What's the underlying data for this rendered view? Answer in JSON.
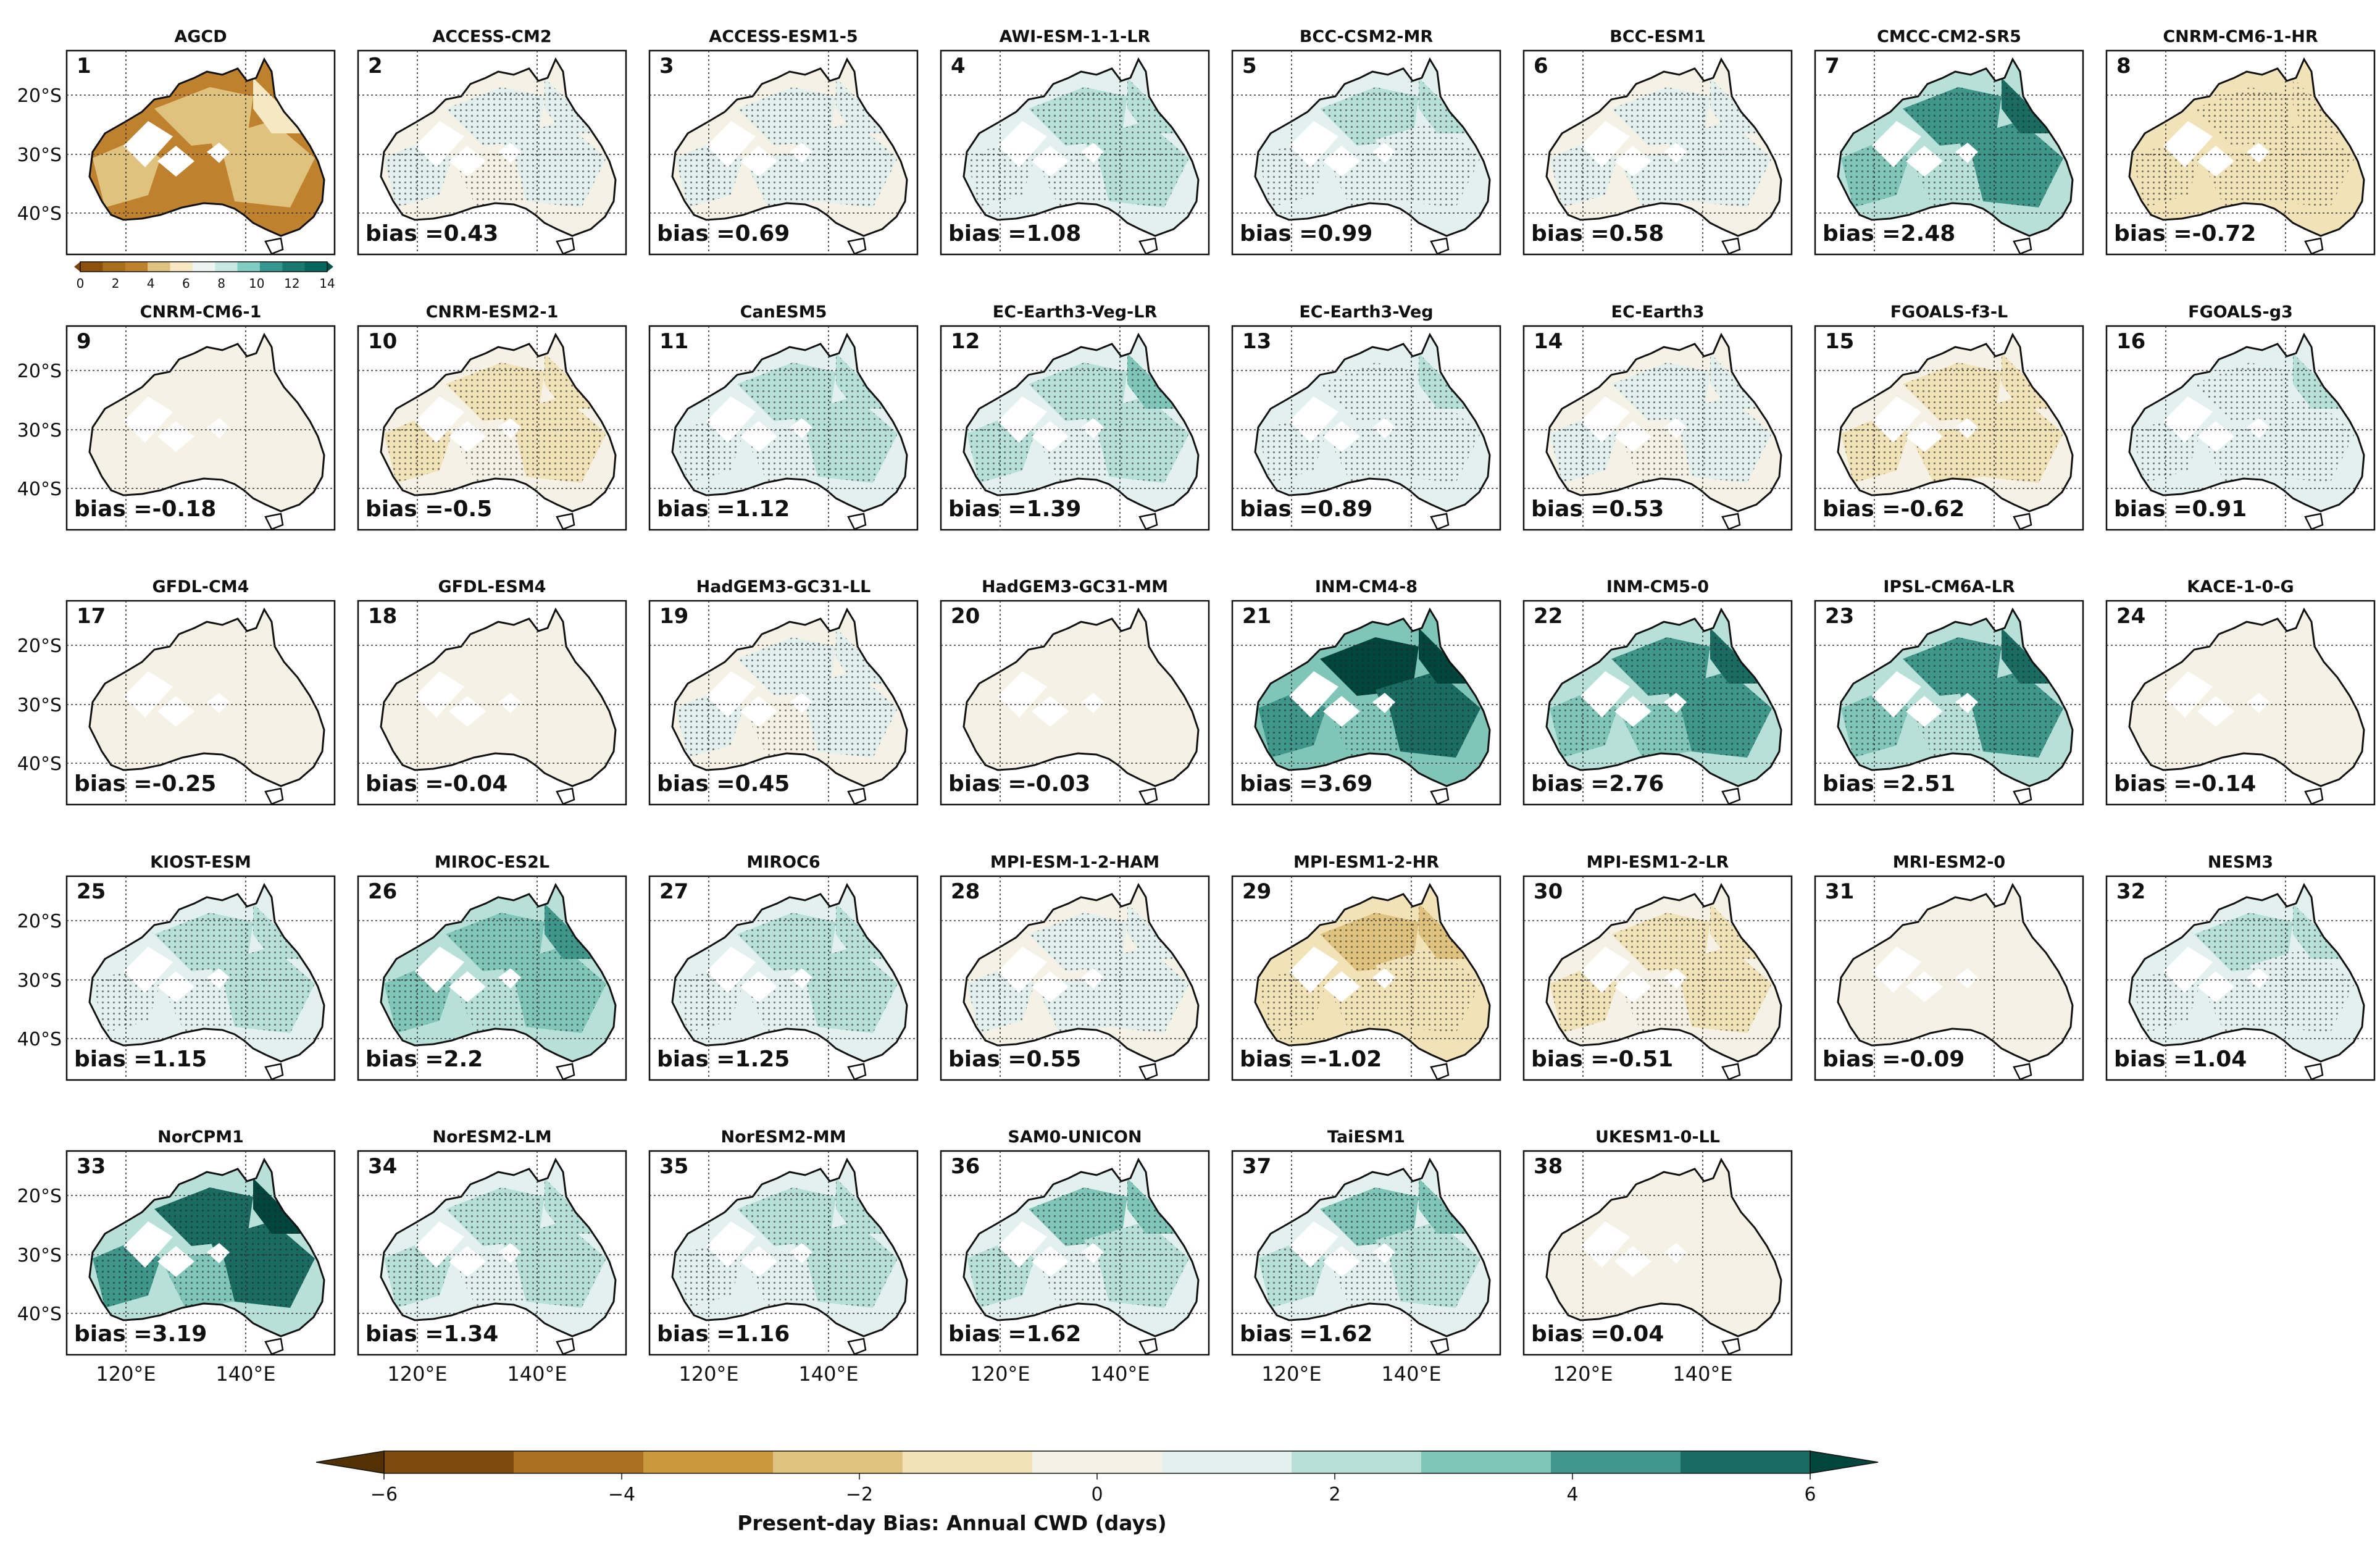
{
  "chart_data": {
    "type": "heatmap",
    "description_kind": "small-multiples maps",
    "reference": {
      "index": "1",
      "title": "AGCD"
    },
    "observed_colorbar": {
      "ticks": [
        "0",
        "2",
        "4",
        "6",
        "8",
        "10",
        "12",
        "14"
      ]
    },
    "lat_labels": [
      "20°S",
      "30°S",
      "40°S"
    ],
    "lon_labels": [
      "120°E",
      "140°E"
    ],
    "bias_prefix": "bias =",
    "models": [
      {
        "index": "2",
        "name": "ACCESS-CM2",
        "bias": "0.43"
      },
      {
        "index": "3",
        "name": "ACCESS-ESM1-5",
        "bias": "0.69"
      },
      {
        "index": "4",
        "name": "AWI-ESM-1-1-LR",
        "bias": "1.08"
      },
      {
        "index": "5",
        "name": "BCC-CSM2-MR",
        "bias": "0.99"
      },
      {
        "index": "6",
        "name": "BCC-ESM1",
        "bias": "0.58"
      },
      {
        "index": "7",
        "name": "CMCC-CM2-SR5",
        "bias": "2.48"
      },
      {
        "index": "8",
        "name": "CNRM-CM6-1-HR",
        "bias": "-0.72"
      },
      {
        "index": "9",
        "name": "CNRM-CM6-1",
        "bias": "-0.18"
      },
      {
        "index": "10",
        "name": "CNRM-ESM2-1",
        "bias": "-0.5"
      },
      {
        "index": "11",
        "name": "CanESM5",
        "bias": "1.12"
      },
      {
        "index": "12",
        "name": "EC-Earth3-Veg-LR",
        "bias": "1.39"
      },
      {
        "index": "13",
        "name": "EC-Earth3-Veg",
        "bias": "0.89"
      },
      {
        "index": "14",
        "name": "EC-Earth3",
        "bias": "0.53"
      },
      {
        "index": "15",
        "name": "FGOALS-f3-L",
        "bias": "-0.62"
      },
      {
        "index": "16",
        "name": "FGOALS-g3",
        "bias": "0.91"
      },
      {
        "index": "17",
        "name": "GFDL-CM4",
        "bias": "-0.25"
      },
      {
        "index": "18",
        "name": "GFDL-ESM4",
        "bias": "-0.04"
      },
      {
        "index": "19",
        "name": "HadGEM3-GC31-LL",
        "bias": "0.45"
      },
      {
        "index": "20",
        "name": "HadGEM3-GC31-MM",
        "bias": "-0.03"
      },
      {
        "index": "21",
        "name": "INM-CM4-8",
        "bias": "3.69"
      },
      {
        "index": "22",
        "name": "INM-CM5-0",
        "bias": "2.76"
      },
      {
        "index": "23",
        "name": "IPSL-CM6A-LR",
        "bias": "2.51"
      },
      {
        "index": "24",
        "name": "KACE-1-0-G",
        "bias": "-0.14"
      },
      {
        "index": "25",
        "name": "KIOST-ESM",
        "bias": "1.15"
      },
      {
        "index": "26",
        "name": "MIROC-ES2L",
        "bias": "2.2"
      },
      {
        "index": "27",
        "name": "MIROC6",
        "bias": "1.25"
      },
      {
        "index": "28",
        "name": "MPI-ESM-1-2-HAM",
        "bias": "0.55"
      },
      {
        "index": "29",
        "name": "MPI-ESM1-2-HR",
        "bias": "-1.02"
      },
      {
        "index": "30",
        "name": "MPI-ESM1-2-LR",
        "bias": "-0.51"
      },
      {
        "index": "31",
        "name": "MRI-ESM2-0",
        "bias": "-0.09"
      },
      {
        "index": "32",
        "name": "NESM3",
        "bias": "1.04"
      },
      {
        "index": "33",
        "name": "NorCPM1",
        "bias": "3.19"
      },
      {
        "index": "34",
        "name": "NorESM2-LM",
        "bias": "1.34"
      },
      {
        "index": "35",
        "name": "NorESM2-MM",
        "bias": "1.16"
      },
      {
        "index": "36",
        "name": "SAM0-UNICON",
        "bias": "1.62"
      },
      {
        "index": "37",
        "name": "TaiESM1",
        "bias": "1.62"
      },
      {
        "index": "38",
        "name": "UKESM1-0-LL",
        "bias": "0.04"
      }
    ],
    "bias_colorbar": {
      "label": "Present-day Bias: Annual CWD (days)",
      "ticks": [
        "−6",
        "−4",
        "−2",
        "0",
        "2",
        "4",
        "6"
      ],
      "range": [
        -6,
        6
      ],
      "colors": [
        "#543005",
        "#7f4a0e",
        "#a8701f",
        "#c9983f",
        "#e0c27f",
        "#f1e2b8",
        "#f5f1e4",
        "#e3f1ee",
        "#b6e0d8",
        "#7fc6b8",
        "#3f978c",
        "#1a6c63",
        "#01463c"
      ]
    }
  }
}
